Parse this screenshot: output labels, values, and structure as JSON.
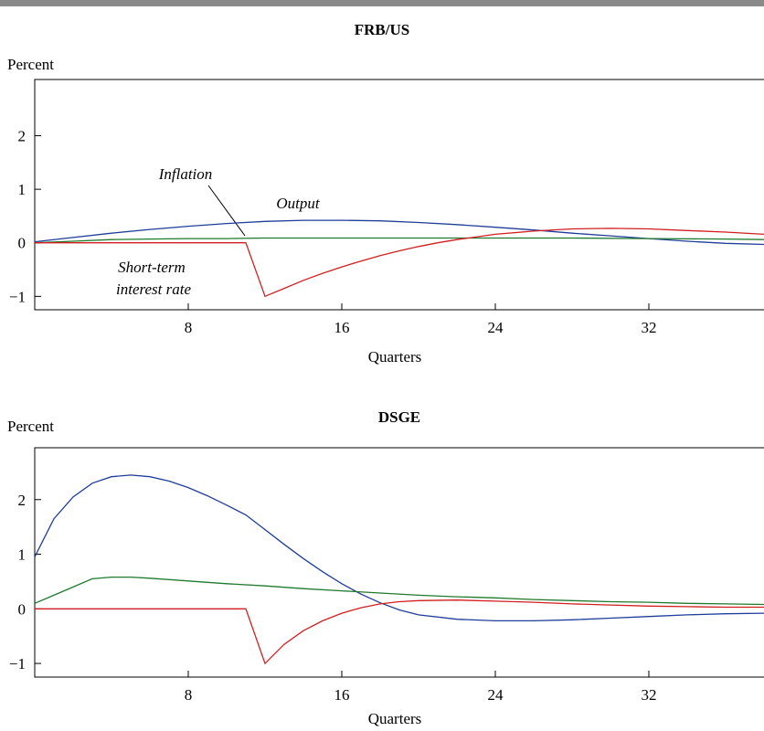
{
  "colors": {
    "top_bar": "#8a8a8a",
    "axes": "#000000",
    "output": "#1f3d9a",
    "inflation": "#1f7a2e",
    "interest": "#d11f1f"
  },
  "chart_data": [
    {
      "type": "line",
      "title": "FRB/US",
      "ylabel": "Percent",
      "xlabel": "Quarters",
      "xlim": [
        0,
        38
      ],
      "ylim": [
        -1.25,
        3.05
      ],
      "xticks": [
        8,
        16,
        24,
        32
      ],
      "yticks": [
        -1,
        0,
        1,
        2
      ],
      "ytick_labels": [
        "−1",
        "0",
        "1",
        "2"
      ],
      "annotations": [
        "Inflation",
        "Output",
        "Short-term",
        "interest rate"
      ],
      "series": [
        {
          "name": "Output",
          "color_key": "output",
          "x": [
            0,
            2,
            4,
            6,
            8,
            10,
            12,
            14,
            16,
            18,
            20,
            22,
            24,
            26,
            28,
            30,
            32,
            34,
            36,
            38
          ],
          "y": [
            0.02,
            0.1,
            0.18,
            0.25,
            0.31,
            0.36,
            0.4,
            0.42,
            0.42,
            0.41,
            0.38,
            0.34,
            0.29,
            0.24,
            0.18,
            0.13,
            0.08,
            0.03,
            -0.01,
            -0.03
          ]
        },
        {
          "name": "Inflation",
          "color_key": "inflation",
          "x": [
            0,
            2,
            4,
            6,
            8,
            10,
            12,
            16,
            20,
            24,
            28,
            32,
            36,
            38
          ],
          "y": [
            0.0,
            0.03,
            0.06,
            0.07,
            0.08,
            0.08,
            0.09,
            0.09,
            0.09,
            0.09,
            0.09,
            0.08,
            0.07,
            0.06
          ]
        },
        {
          "name": "Short-term interest rate",
          "color_key": "interest",
          "x": [
            0,
            11,
            12,
            13,
            14,
            15,
            16,
            17,
            18,
            19,
            20,
            21,
            22,
            24,
            26,
            28,
            30,
            32,
            34,
            36,
            38
          ],
          "y": [
            0,
            0,
            -1.0,
            -0.85,
            -0.7,
            -0.57,
            -0.45,
            -0.34,
            -0.24,
            -0.15,
            -0.07,
            0.0,
            0.06,
            0.16,
            0.22,
            0.26,
            0.27,
            0.26,
            0.23,
            0.2,
            0.16
          ]
        }
      ]
    },
    {
      "type": "line",
      "title": "DSGE",
      "ylabel": "Percent",
      "xlabel": "Quarters",
      "xlim": [
        0,
        38
      ],
      "ylim": [
        -1.25,
        2.95
      ],
      "xticks": [
        8,
        16,
        24,
        32
      ],
      "yticks": [
        -1,
        0,
        1,
        2
      ],
      "ytick_labels": [
        "−1",
        "0",
        "1",
        "2"
      ],
      "series": [
        {
          "name": "Output",
          "color_key": "output",
          "x": [
            0,
            1,
            2,
            3,
            4,
            5,
            6,
            7,
            8,
            9,
            10,
            11,
            12,
            13,
            14,
            15,
            16,
            17,
            18,
            19,
            20,
            22,
            24,
            26,
            28,
            30,
            32,
            34,
            36,
            38
          ],
          "y": [
            0.95,
            1.65,
            2.05,
            2.3,
            2.42,
            2.45,
            2.42,
            2.34,
            2.22,
            2.07,
            1.9,
            1.72,
            1.45,
            1.18,
            0.92,
            0.68,
            0.46,
            0.27,
            0.11,
            -0.02,
            -0.11,
            -0.19,
            -0.22,
            -0.22,
            -0.2,
            -0.17,
            -0.14,
            -0.11,
            -0.09,
            -0.08
          ]
        },
        {
          "name": "Inflation",
          "color_key": "inflation",
          "x": [
            0,
            1,
            2,
            3,
            4,
            5,
            6,
            8,
            10,
            12,
            14,
            16,
            18,
            20,
            22,
            24,
            26,
            28,
            30,
            32,
            34,
            36,
            38
          ],
          "y": [
            0.1,
            0.25,
            0.4,
            0.55,
            0.58,
            0.58,
            0.56,
            0.51,
            0.46,
            0.42,
            0.37,
            0.33,
            0.29,
            0.25,
            0.22,
            0.2,
            0.17,
            0.15,
            0.13,
            0.12,
            0.1,
            0.09,
            0.08
          ]
        },
        {
          "name": "Short-term interest rate",
          "color_key": "interest",
          "x": [
            0,
            11,
            12,
            13,
            14,
            15,
            16,
            17,
            18,
            19,
            20,
            22,
            24,
            26,
            28,
            30,
            32,
            34,
            36,
            38
          ],
          "y": [
            0,
            0,
            -1.0,
            -0.65,
            -0.4,
            -0.22,
            -0.08,
            0.02,
            0.09,
            0.13,
            0.15,
            0.16,
            0.14,
            0.12,
            0.09,
            0.07,
            0.05,
            0.04,
            0.03,
            0.03
          ]
        }
      ]
    }
  ]
}
